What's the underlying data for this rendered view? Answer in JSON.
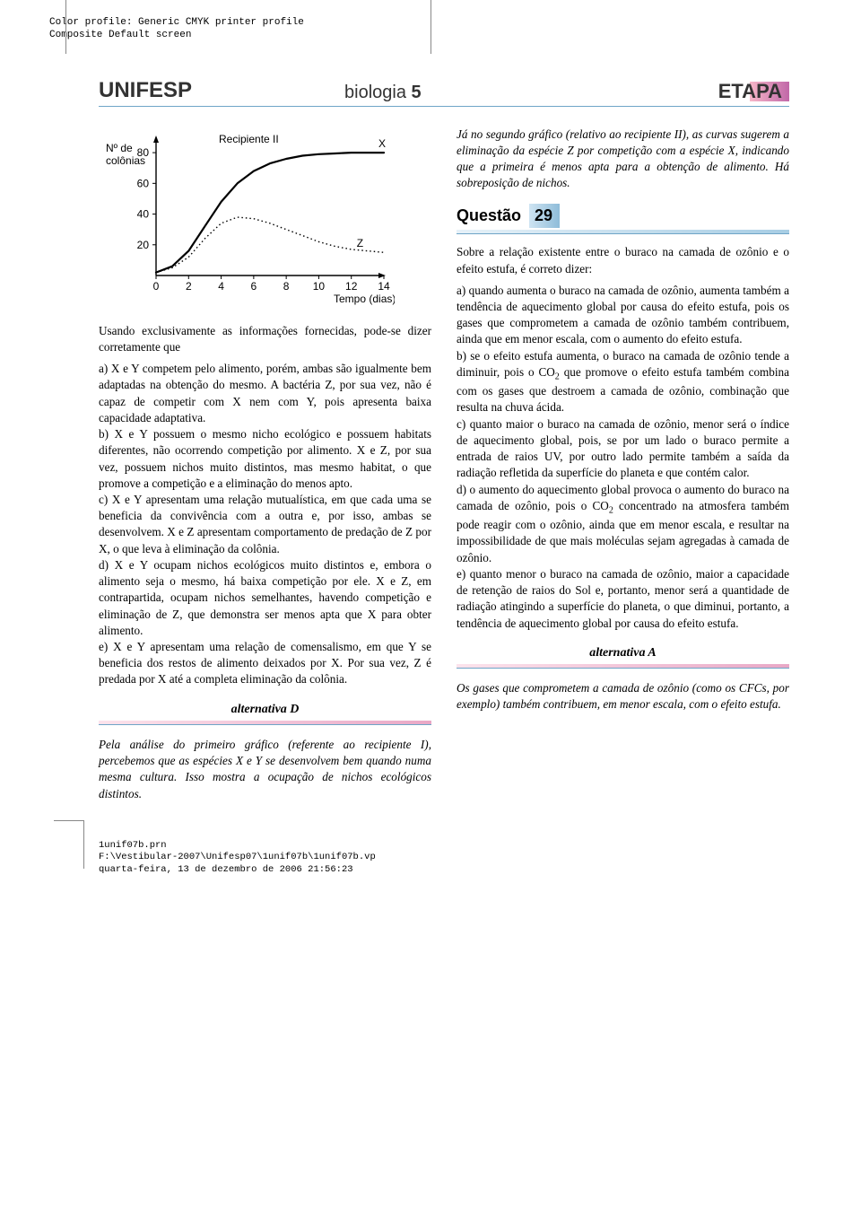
{
  "meta": {
    "line1": "Color profile: Generic CMYK printer profile",
    "line2": "Composite  Default screen"
  },
  "header": {
    "uni": "UNIFESP",
    "subject_a": "biologia ",
    "subject_b": "5",
    "etapa": "ETAPA"
  },
  "chart": {
    "title": "Recipiente II",
    "ylabel_a": "Nº de",
    "ylabel_b": "colônias",
    "xlabel": "Tempo (dias)",
    "series_x_label": "X",
    "series_z_label": "Z",
    "x_ticks": [
      "0",
      "2",
      "4",
      "6",
      "8",
      "10",
      "12",
      "14"
    ],
    "y_ticks": [
      "20",
      "40",
      "60",
      "80"
    ],
    "ylim": [
      0,
      90
    ],
    "xlim": [
      0,
      14
    ],
    "axis_color": "#000000",
    "line_x_color": "#000000",
    "line_z_color": "#000000",
    "font_family": "Arial,sans-serif",
    "tick_fontsize": 12,
    "line_x_width": 2.2,
    "line_z_dash": "1.5 3",
    "series_x": [
      [
        0,
        2
      ],
      [
        1,
        6
      ],
      [
        2,
        16
      ],
      [
        3,
        32
      ],
      [
        4,
        48
      ],
      [
        5,
        60
      ],
      [
        6,
        68
      ],
      [
        7,
        73
      ],
      [
        8,
        76
      ],
      [
        9,
        78
      ],
      [
        10,
        79
      ],
      [
        11,
        79.5
      ],
      [
        12,
        80
      ],
      [
        13,
        80
      ],
      [
        14,
        80
      ]
    ],
    "series_z": [
      [
        0,
        2
      ],
      [
        1,
        5
      ],
      [
        2,
        12
      ],
      [
        3,
        24
      ],
      [
        4,
        34
      ],
      [
        5,
        38
      ],
      [
        6,
        37
      ],
      [
        7,
        34
      ],
      [
        8,
        30
      ],
      [
        9,
        26
      ],
      [
        10,
        22
      ],
      [
        11,
        19
      ],
      [
        12,
        17
      ],
      [
        13,
        16
      ],
      [
        14,
        15
      ]
    ]
  },
  "left": {
    "intro": "Usando exclusivamente as informações fornecidas, pode-se dizer corretamente que",
    "a": "a) X e Y competem pelo alimento, porém, ambas são igualmente bem adaptadas na obtenção do mesmo. A bactéria Z, por sua vez, não é capaz de competir com X nem com Y, pois apresenta baixa capacidade adaptativa.",
    "b": "b) X e Y possuem o mesmo nicho ecológico e possuem habitats diferentes, não ocorrendo competição por alimento. X e Z, por sua vez, possuem nichos muito distintos, mas mesmo habitat, o que promove a competição e a eliminação do menos apto.",
    "c": "c) X e Y apresentam uma relação mutualística, em que cada uma se beneficia da convivência com a outra e, por isso, ambas se desenvolvem. X e Z apresentam comportamento de predação de Z por X, o que leva à eliminação da colônia.",
    "d": "d) X e Y ocupam nichos ecológicos muito distintos e, embora o alimento seja o mesmo, há baixa competição por ele. X e Z, em contrapartida, ocupam nichos semelhantes, havendo competição e eliminação de Z, que demonstra ser menos apta que X para obter alimento.",
    "e": "e) X e Y apresentam uma relação de comensalismo, em que Y se beneficia dos restos de alimento deixados por X. Por sua vez, Z é predada por X até a completa eliminação da colônia.",
    "ans_label": "alternativa D",
    "ans_text": "Pela análise do primeiro gráfico (referente ao recipiente I), percebemos que as espécies X e Y se desenvolvem bem quando numa mesma cultura. Isso mostra a ocupação de nichos ecológicos distintos."
  },
  "right": {
    "cont": "Já no segundo gráfico (relativo ao recipiente II), as curvas sugerem a eliminação da espécie Z por competição com a espécie X, indicando que a primeira é menos apta para a obtenção de alimento. Há sobreposição de nichos.",
    "q_label": "Questão",
    "q_num": "29",
    "intro": "Sobre a relação existente entre o buraco na camada de ozônio e o efeito estufa, é correto dizer:",
    "a": "a) quando aumenta o buraco na camada de ozônio, aumenta também a tendência de aquecimento global por causa do efeito estufa, pois os gases que comprometem a camada de ozônio também contribuem, ainda que em menor escala, com o aumento do efeito estufa.",
    "b_pre": "b) se o efeito estufa aumenta, o buraco na camada de ozônio tende a diminuir, pois o CO",
    "b_sub": "2",
    "b_post": " que promove o efeito estufa também combina com os gases que destroem a camada de ozônio, combinação que resulta na chuva ácida.",
    "c": "c) quanto maior o buraco na camada de ozônio, menor será o índice de aquecimento global, pois, se por um lado o buraco permite a entrada de raios UV, por outro lado permite também a saída da radiação refletida da superfície do planeta e que contém calor.",
    "d_pre": "d) o aumento do aquecimento global provoca o aumento do buraco na camada de ozônio, pois o CO",
    "d_sub": "2",
    "d_post": " concentrado na atmosfera também pode reagir com o ozônio, ainda que em menor escala, e resultar na impossibilidade de que mais moléculas sejam agregadas à camada de ozônio.",
    "e": "e) quanto menor o buraco na camada de ozônio, maior a capacidade de retenção de raios do Sol e, portanto, menor será a quantidade de radiação atingindo a superfície do planeta, o que diminui, portanto, a tendência de aquecimento global por causa do efeito estufa.",
    "ans_label": "alternativa A",
    "ans_text": "Os gases que comprometem a camada de ozônio (como os CFCs, por exemplo) também contribuem, em menor escala, com o efeito estufa."
  },
  "footer": {
    "l1": "1unif07b.prn",
    "l2": "F:\\Vestibular-2007\\Unifesp07\\1unif07b\\1unif07b.vp",
    "l3": "quarta-feira, 13 de dezembro de 2006 21:56:23"
  }
}
